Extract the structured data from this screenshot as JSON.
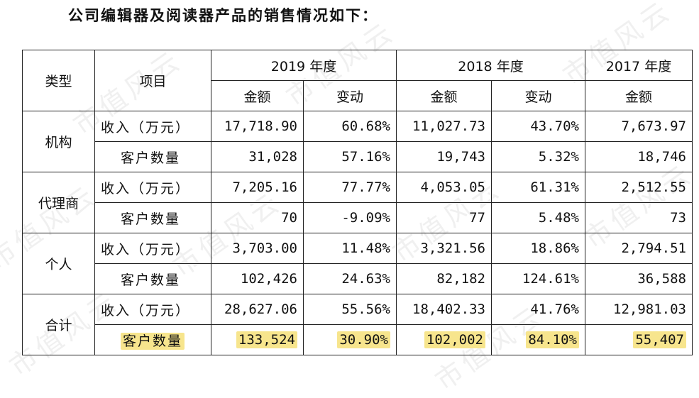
{
  "heading": "公司编辑器及阅读器产品的销售情况如下：",
  "watermark_text": "市值风云",
  "table": {
    "col_type": "类型",
    "col_item": "项目",
    "years": [
      "2019 年度",
      "2018 年度",
      "2017 年度"
    ],
    "sub_amount": "金额",
    "sub_change": "变动",
    "categories": [
      "机构",
      "代理商",
      "个人",
      "合计"
    ],
    "item_revenue": "收入（万元）",
    "item_customers": "客户数量",
    "rows": [
      [
        "17,718.90",
        "60.68%",
        "11,027.73",
        "43.70%",
        "7,673.97"
      ],
      [
        "31,028",
        "57.16%",
        "19,743",
        "5.32%",
        "18,746"
      ],
      [
        "7,205.16",
        "77.77%",
        "4,053.05",
        "61.31%",
        "2,512.55"
      ],
      [
        "70",
        "-9.09%",
        "77",
        "5.48%",
        "73"
      ],
      [
        "3,703.00",
        "11.48%",
        "3,321.56",
        "18.86%",
        "2,794.51"
      ],
      [
        "102,426",
        "24.63%",
        "82,182",
        "124.61%",
        "36,588"
      ],
      [
        "28,627.06",
        "55.56%",
        "18,402.33",
        "41.76%",
        "12,981.03"
      ],
      [
        "133,524",
        "30.90%",
        "102,002",
        "84.10%",
        "55,407"
      ]
    ]
  },
  "colors": {
    "highlight": "#f7e58d",
    "border": "#222222",
    "watermark": "#c8c8c8"
  }
}
